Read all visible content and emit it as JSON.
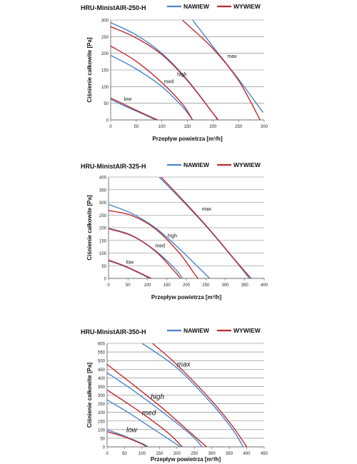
{
  "chart_data": [
    {
      "type": "line",
      "title": "HRU-MinistAIR-250-H",
      "xlabel": "Przepływ powietrza [m³/h]",
      "ylabel": "Ciśnienie całkowite [Pa]",
      "xlim": [
        0,
        300
      ],
      "ylim": [
        0,
        300
      ],
      "xticks": [
        0,
        50,
        100,
        150,
        200,
        250,
        300
      ],
      "yticks": [
        0,
        50,
        100,
        150,
        200,
        250,
        300
      ],
      "grid": "horizontal",
      "legend": [
        {
          "name": "NAWIEW",
          "color": "#4a86c8"
        },
        {
          "name": "WYWIEW",
          "color": "#c0282d"
        }
      ],
      "series": [
        {
          "name": "NAWIEW",
          "level": "low",
          "points": [
            [
              0,
              62
            ],
            [
              30,
              40
            ],
            [
              60,
              20
            ],
            [
              88,
              0
            ]
          ]
        },
        {
          "name": "WYWIEW",
          "level": "low",
          "points": [
            [
              0,
              66
            ],
            [
              30,
              44
            ],
            [
              60,
              22
            ],
            [
              92,
              0
            ]
          ]
        },
        {
          "name": "NAWIEW",
          "level": "med",
          "points": [
            [
              0,
              194
            ],
            [
              50,
              153
            ],
            [
              100,
              100
            ],
            [
              140,
              40
            ],
            [
              160,
              0
            ]
          ]
        },
        {
          "name": "WYWIEW",
          "level": "med",
          "points": [
            [
              0,
              222
            ],
            [
              50,
              176
            ],
            [
              100,
              112
            ],
            [
              140,
              48
            ],
            [
              160,
              0
            ]
          ]
        },
        {
          "name": "NAWIEW",
          "level": "high",
          "points": [
            [
              0,
              292
            ],
            [
              50,
              255
            ],
            [
              100,
              200
            ],
            [
              150,
              120
            ],
            [
              200,
              20
            ],
            [
              208,
              0
            ]
          ]
        },
        {
          "name": "WYWIEW",
          "level": "high",
          "points": [
            [
              0,
              280
            ],
            [
              50,
              246
            ],
            [
              100,
              196
            ],
            [
              150,
              118
            ],
            [
              200,
              20
            ],
            [
              210,
              0
            ]
          ]
        },
        {
          "name": "NAWIEW",
          "level": "max",
          "points": [
            [
              160,
              300
            ],
            [
              200,
              220
            ],
            [
              250,
              122
            ],
            [
              298,
              22
            ]
          ]
        },
        {
          "name": "WYWIEW",
          "level": "max",
          "points": [
            [
              140,
              300
            ],
            [
              200,
              214
            ],
            [
              250,
              118
            ],
            [
              292,
              0
            ]
          ]
        }
      ],
      "annotations": [
        {
          "text": "low",
          "x": 26,
          "y": 58
        },
        {
          "text": "med",
          "x": 104,
          "y": 110
        },
        {
          "text": "high",
          "x": 130,
          "y": 132
        },
        {
          "text": "max",
          "x": 228,
          "y": 186
        }
      ]
    },
    {
      "type": "line",
      "title": "HRU-MinistAIR-325-H",
      "xlabel": "Przepływ powietrza [m³/h]",
      "ylabel": "Ciśnienie całkowite [Pa]",
      "xlim": [
        0,
        400
      ],
      "ylim": [
        0,
        400
      ],
      "xticks": [
        0,
        50,
        100,
        150,
        200,
        250,
        300,
        350,
        400
      ],
      "yticks": [
        0,
        50,
        100,
        150,
        200,
        250,
        300,
        350,
        400
      ],
      "grid": "horizontal",
      "legend": [
        {
          "name": "NAWIEW",
          "color": "#4a86c8"
        },
        {
          "name": "WYWIEW",
          "color": "#c0282d"
        }
      ],
      "series": [
        {
          "name": "NAWIEW",
          "level": "low",
          "points": [
            [
              0,
              70
            ],
            [
              40,
              48
            ],
            [
              80,
              20
            ],
            [
              105,
              0
            ]
          ]
        },
        {
          "name": "WYWIEW",
          "level": "low",
          "points": [
            [
              0,
              72
            ],
            [
              40,
              50
            ],
            [
              80,
              22
            ],
            [
              110,
              0
            ]
          ]
        },
        {
          "name": "NAWIEW",
          "level": "med",
          "points": [
            [
              0,
              198
            ],
            [
              60,
              170
            ],
            [
              120,
              110
            ],
            [
              170,
              40
            ],
            [
              190,
              0
            ]
          ]
        },
        {
          "name": "WYWIEW",
          "level": "med",
          "points": [
            [
              0,
              196
            ],
            [
              60,
              168
            ],
            [
              120,
              108
            ],
            [
              165,
              36
            ],
            [
              185,
              0
            ]
          ]
        },
        {
          "name": "NAWIEW",
          "level": "high",
          "points": [
            [
              0,
              292
            ],
            [
              60,
              256
            ],
            [
              120,
              200
            ],
            [
              180,
              120
            ],
            [
              240,
              30
            ],
            [
              260,
              0
            ]
          ]
        },
        {
          "name": "WYWIEW",
          "level": "high",
          "points": [
            [
              0,
              268
            ],
            [
              60,
              248
            ],
            [
              120,
              196
            ],
            [
              180,
              104
            ],
            [
              220,
              20
            ],
            [
              230,
              0
            ]
          ]
        },
        {
          "name": "NAWIEW",
          "level": "max",
          "points": [
            [
              130,
              400
            ],
            [
              200,
              290
            ],
            [
              260,
              190
            ],
            [
              320,
              80
            ],
            [
              362,
              0
            ]
          ]
        },
        {
          "name": "WYWIEW",
          "level": "max",
          "points": [
            [
              135,
              400
            ],
            [
              200,
              294
            ],
            [
              260,
              192
            ],
            [
              320,
              82
            ],
            [
              366,
              0
            ]
          ]
        }
      ],
      "annotations": [
        {
          "text": "low",
          "x": 45,
          "y": 58
        },
        {
          "text": "med",
          "x": 120,
          "y": 122
        },
        {
          "text": "high",
          "x": 152,
          "y": 162
        },
        {
          "text": "max",
          "x": 240,
          "y": 268
        }
      ]
    },
    {
      "type": "line",
      "title": "HRU-MinistAIR-350-H",
      "xlabel": "Przepływ powietrza [m³/h]",
      "ylabel": "Ciśnienie całkowite [Pa]",
      "xlim": [
        0,
        450
      ],
      "ylim": [
        0,
        600
      ],
      "xticks": [
        0,
        50,
        100,
        150,
        200,
        250,
        300,
        350,
        400,
        450
      ],
      "yticks": [
        0,
        50,
        100,
        150,
        200,
        250,
        300,
        350,
        400,
        450,
        500,
        550,
        600
      ],
      "grid": "horizontal",
      "legend": [
        {
          "name": "NAWIEW",
          "color": "#4a86c8"
        },
        {
          "name": "WYWIEW",
          "color": "#c0282d"
        }
      ],
      "series": [
        {
          "name": "NAWIEW",
          "level": "low",
          "points": [
            [
              0,
              100
            ],
            [
              50,
              62
            ],
            [
              100,
              20
            ],
            [
              118,
              0
            ]
          ]
        },
        {
          "name": "WYWIEW",
          "level": "low",
          "points": [
            [
              0,
              88
            ],
            [
              50,
              58
            ],
            [
              100,
              16
            ],
            [
              112,
              0
            ]
          ]
        },
        {
          "name": "NAWIEW",
          "level": "med",
          "points": [
            [
              0,
              272
            ],
            [
              60,
              200
            ],
            [
              120,
              120
            ],
            [
              180,
              40
            ],
            [
              210,
              0
            ]
          ]
        },
        {
          "name": "WYWIEW",
          "level": "med",
          "points": [
            [
              0,
              330
            ],
            [
              60,
              250
            ],
            [
              120,
              166
            ],
            [
              180,
              72
            ],
            [
              215,
              0
            ]
          ]
        },
        {
          "name": "NAWIEW",
          "level": "high",
          "points": [
            [
              0,
              430
            ],
            [
              80,
              320
            ],
            [
              160,
              200
            ],
            [
              240,
              70
            ],
            [
              272,
              0
            ]
          ]
        },
        {
          "name": "WYWIEW",
          "level": "high",
          "points": [
            [
              0,
              478
            ],
            [
              80,
              352
            ],
            [
              160,
              222
            ],
            [
              240,
              80
            ],
            [
              285,
              0
            ]
          ]
        },
        {
          "name": "NAWIEW",
          "level": "max",
          "points": [
            [
              100,
              600
            ],
            [
              200,
              458
            ],
            [
              300,
              250
            ],
            [
              360,
              100
            ],
            [
              390,
              0
            ]
          ]
        },
        {
          "name": "WYWIEW",
          "level": "max",
          "points": [
            [
              130,
              600
            ],
            [
              200,
              476
            ],
            [
              300,
              266
            ],
            [
              360,
              118
            ],
            [
              400,
              0
            ]
          ]
        }
      ],
      "annotations": [
        {
          "text": "low",
          "x": 55,
          "y": 85
        },
        {
          "text": "med",
          "x": 100,
          "y": 185
        },
        {
          "text": "high",
          "x": 125,
          "y": 278
        },
        {
          "text": "max",
          "x": 200,
          "y": 465
        }
      ]
    }
  ]
}
